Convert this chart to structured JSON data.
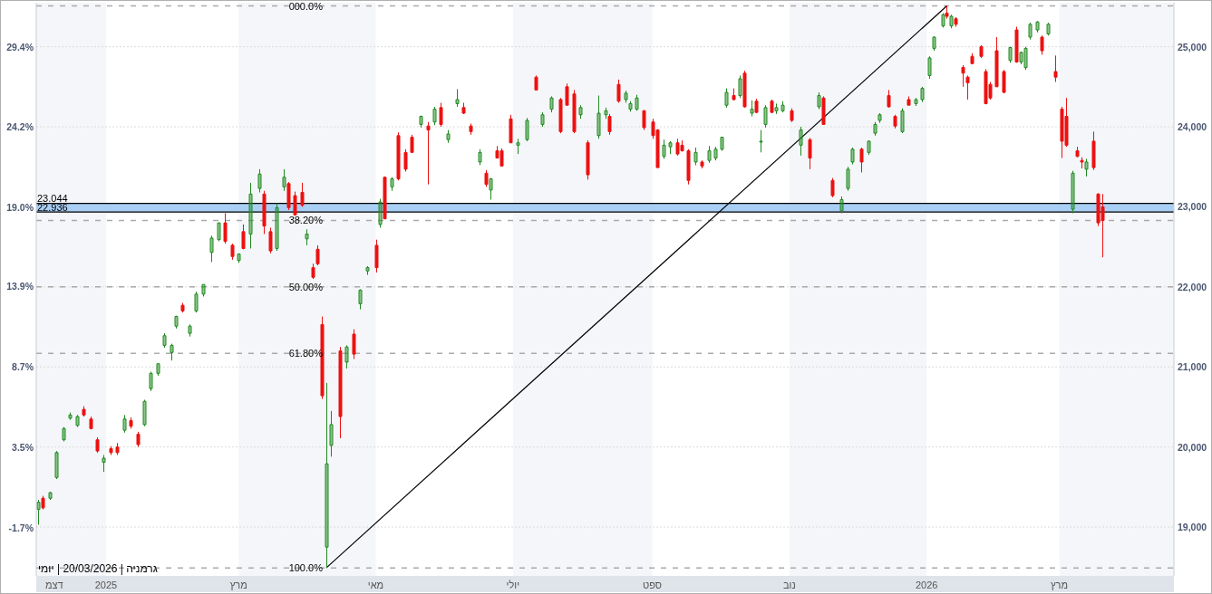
{
  "chart_data": {
    "type": "candlestick",
    "annotations": [
      "גרמניה | 20/03/2026 | יומי",
      {
        "text": "000.0%",
        "x": "2025-04-09",
        "y": 25510
      },
      {
        "text": "38.20%",
        "x": "2025-04-09",
        "y": 22830
      },
      {
        "text": "50.00%",
        "x": "2025-04-09",
        "y": 22000
      },
      {
        "text": "61.80%",
        "x": "2025-04-09",
        "y": 21170
      },
      {
        "text": "100.0%",
        "x": "2025-04-09",
        "y": 18490
      },
      {
        "text": "23.044",
        "x": "2024-12-01",
        "y": 23044
      },
      {
        "text": "22.936",
        "x": "2024-12-01",
        "y": 22936
      }
    ],
    "x": [
      "2024-12-02",
      "2024-12-04",
      "2024-12-07",
      "2024-12-10",
      "2024-12-13",
      "2024-12-16",
      "2024-12-19",
      "2024-12-22",
      "2024-12-25",
      "2024-12-28",
      "2024-12-31",
      "2025-01-03",
      "2025-01-06",
      "2025-01-09",
      "2025-01-12",
      "2025-01-15",
      "2025-01-18",
      "2025-01-21",
      "2025-01-24",
      "2025-01-27",
      "2025-01-30",
      "2025-02-01",
      "2025-02-04",
      "2025-02-07",
      "2025-02-10",
      "2025-02-13",
      "2025-02-17",
      "2025-02-20",
      "2025-02-23",
      "2025-02-26",
      "2025-03-01",
      "2025-03-03",
      "2025-03-06",
      "2025-03-10",
      "2025-03-12",
      "2025-03-15",
      "2025-03-18",
      "2025-03-21",
      "2025-03-23",
      "2025-03-26",
      "2025-03-29",
      "2025-03-31",
      "2025-04-03",
      "2025-04-05",
      "2025-04-07",
      "2025-04-09",
      "2025-04-11",
      "2025-04-15",
      "2025-04-18",
      "2025-04-21",
      "2025-04-24",
      "2025-04-27",
      "2025-05-01",
      "2025-05-03",
      "2025-05-05",
      "2025-05-08",
      "2025-05-11",
      "2025-05-14",
      "2025-05-17",
      "2025-05-21",
      "2025-05-24",
      "2025-05-27",
      "2025-05-30",
      "2025-06-02",
      "2025-06-06",
      "2025-06-09",
      "2025-06-12",
      "2025-06-16",
      "2025-06-19",
      "2025-06-21",
      "2025-06-24",
      "2025-06-26",
      "2025-06-30",
      "2025-07-03",
      "2025-07-07",
      "2025-07-11",
      "2025-07-14",
      "2025-07-18",
      "2025-07-22",
      "2025-07-25",
      "2025-07-28",
      "2025-07-31",
      "2025-08-03",
      "2025-08-08",
      "2025-08-11",
      "2025-08-13",
      "2025-08-17",
      "2025-08-20",
      "2025-08-22",
      "2025-08-25",
      "2025-08-28",
      "2025-09-01",
      "2025-09-03",
      "2025-09-06",
      "2025-09-09",
      "2025-09-12",
      "2025-09-14",
      "2025-09-17",
      "2025-09-20",
      "2025-09-23",
      "2025-09-26",
      "2025-09-29",
      "2025-10-02",
      "2025-10-04",
      "2025-10-07",
      "2025-10-10",
      "2025-10-12",
      "2025-10-15",
      "2025-10-17",
      "2025-10-19",
      "2025-10-21",
      "2025-10-24",
      "2025-10-26",
      "2025-10-29",
      "2025-11-02",
      "2025-11-06",
      "2025-11-10",
      "2025-11-14",
      "2025-11-16",
      "2025-11-20",
      "2025-11-24",
      "2025-11-27",
      "2025-11-29",
      "2025-12-03",
      "2025-12-06",
      "2025-12-09",
      "2025-12-11",
      "2025-12-15",
      "2025-12-18",
      "2025-12-21",
      "2025-12-24",
      "2025-12-27",
      "2025-12-30",
      "2026-01-02",
      "2026-01-04",
      "2026-01-08",
      "2026-01-10",
      "2026-01-12",
      "2026-01-14",
      "2026-01-17",
      "2026-01-19",
      "2026-01-21",
      "2026-01-25",
      "2026-01-27",
      "2026-01-29",
      "2026-02-01",
      "2026-02-04",
      "2026-02-07",
      "2026-02-10",
      "2026-02-12",
      "2026-02-14",
      "2026-02-16",
      "2026-02-19",
      "2026-02-21",
      "2026-02-24",
      "2026-02-27",
      "2026-03-02",
      "2026-03-04",
      "2026-03-07",
      "2026-03-09",
      "2026-03-11",
      "2026-03-13",
      "2026-03-16",
      "2026-03-18",
      "2026-03-20"
    ],
    "ohlc": [
      [
        19220,
        19340,
        19030,
        19310
      ],
      [
        19360,
        19390,
        19220,
        19240
      ],
      [
        19360,
        19440,
        19340,
        19430
      ],
      [
        19620,
        19950,
        19600,
        19930
      ],
      [
        20090,
        20250,
        20070,
        20230
      ],
      [
        20360,
        20430,
        20340,
        20400
      ],
      [
        20270,
        20400,
        20250,
        20380
      ],
      [
        20470,
        20510,
        20380,
        20400
      ],
      [
        20350,
        20380,
        20220,
        20230
      ],
      [
        20090,
        20120,
        19930,
        19950
      ],
      [
        19810,
        19900,
        19690,
        19860
      ],
      [
        19980,
        20010,
        19900,
        19930
      ],
      [
        20000,
        20050,
        19900,
        19930
      ],
      [
        20210,
        20400,
        20180,
        20350
      ],
      [
        20330,
        20370,
        20230,
        20260
      ],
      [
        20160,
        20190,
        20000,
        20030
      ],
      [
        20280,
        20590,
        20260,
        20570
      ],
      [
        20730,
        20940,
        20700,
        20920
      ],
      [
        20920,
        21040,
        20890,
        21040
      ],
      [
        21270,
        21420,
        21240,
        21390
      ],
      [
        21180,
        21290,
        21080,
        21270
      ],
      [
        21510,
        21640,
        21480,
        21630
      ],
      [
        21770,
        21800,
        21680,
        21700
      ],
      [
        21420,
        21530,
        21380,
        21510
      ],
      [
        21700,
        21940,
        21680,
        21910
      ],
      [
        21910,
        22030,
        21880,
        22030
      ],
      [
        22430,
        22640,
        22310,
        22610
      ],
      [
        22590,
        22800,
        22570,
        22800
      ],
      [
        22800,
        22920,
        22540,
        22570
      ],
      [
        22520,
        22540,
        22340,
        22380
      ],
      [
        22330,
        22420,
        22300,
        22410
      ],
      [
        22690,
        22780,
        22470,
        22480
      ],
      [
        22660,
        23300,
        22480,
        23160
      ],
      [
        23230,
        23470,
        23180,
        23410
      ],
      [
        23160,
        23200,
        22660,
        22760
      ],
      [
        22690,
        22740,
        22420,
        22450
      ],
      [
        22480,
        23040,
        22450,
        22990
      ],
      [
        23250,
        23470,
        23200,
        23370
      ],
      [
        23290,
        23310,
        22960,
        22990
      ],
      [
        23140,
        23190,
        22890,
        22900
      ],
      [
        23180,
        23300,
        23000,
        23020
      ],
      [
        22600,
        22720,
        22520,
        22660
      ],
      [
        22240,
        22290,
        22100,
        22120
      ],
      [
        22470,
        22520,
        22270,
        22290
      ],
      [
        21530,
        21630,
        20600,
        20640
      ],
      [
        18750,
        20800,
        18490,
        19790
      ],
      [
        20020,
        20450,
        19880,
        20280
      ],
      [
        21200,
        21250,
        20110,
        20380
      ],
      [
        21060,
        21270,
        20980,
        21250
      ],
      [
        21410,
        21470,
        21100,
        21160
      ],
      [
        21790,
        21970,
        21720,
        21960
      ],
      [
        22200,
        22260,
        22150,
        22240
      ],
      [
        22520,
        22590,
        22180,
        22240
      ],
      [
        22780,
        23100,
        22740,
        23060
      ],
      [
        23370,
        23380,
        22850,
        22850
      ],
      [
        23250,
        23370,
        23200,
        23350
      ],
      [
        23890,
        23930,
        23330,
        23350
      ],
      [
        23680,
        23720,
        23440,
        23470
      ],
      [
        23870,
        23900,
        23680,
        23680
      ],
      [
        24030,
        24140,
        23990,
        24130
      ],
      [
        24010,
        24060,
        23280,
        23960
      ],
      [
        24060,
        24250,
        24020,
        24220
      ],
      [
        24240,
        24300,
        24000,
        24030
      ],
      [
        23840,
        23960,
        23800,
        23910
      ],
      [
        24290,
        24470,
        24250,
        24340
      ],
      [
        24240,
        24300,
        24160,
        24170
      ],
      [
        24010,
        24040,
        23900,
        23940
      ],
      [
        23560,
        23720,
        23520,
        23680
      ],
      [
        23420,
        23460,
        23250,
        23280
      ],
      [
        23210,
        23360,
        23090,
        23350
      ],
      [
        23700,
        23760,
        23610,
        23610
      ],
      [
        23700,
        23730,
        23510,
        23510
      ],
      [
        24100,
        24150,
        23800,
        23800
      ],
      [
        23770,
        23850,
        23660,
        23800
      ],
      [
        23840,
        24110,
        23820,
        24080
      ],
      [
        24620,
        24640,
        24460,
        24460
      ],
      [
        24030,
        24180,
        24000,
        24150
      ],
      [
        24220,
        24380,
        24180,
        24360
      ],
      [
        24340,
        24360,
        23920,
        23940
      ],
      [
        24500,
        24540,
        24270,
        24270
      ],
      [
        24410,
        24460,
        23920,
        23940
      ],
      [
        24150,
        24270,
        24100,
        24240
      ],
      [
        23800,
        23830,
        23340,
        23400
      ],
      [
        23890,
        24390,
        23850,
        24170
      ],
      [
        24150,
        24240,
        24100,
        24200
      ],
      [
        24130,
        24160,
        23900,
        23940
      ],
      [
        24530,
        24590,
        24300,
        24320
      ],
      [
        24340,
        24450,
        24300,
        24420
      ],
      [
        24220,
        24320,
        24190,
        24290
      ],
      [
        24220,
        24400,
        24200,
        24360
      ],
      [
        24200,
        24210,
        23960,
        23990
      ],
      [
        24060,
        24100,
        23850,
        23890
      ],
      [
        23960,
        23970,
        23490,
        23490
      ],
      [
        23630,
        23840,
        23600,
        23770
      ],
      [
        23750,
        23820,
        23660,
        23800
      ],
      [
        23800,
        23850,
        23640,
        23660
      ],
      [
        23770,
        23830,
        23690,
        23700
      ],
      [
        23700,
        23720,
        23280,
        23330
      ],
      [
        23560,
        23740,
        23520,
        23680
      ],
      [
        23560,
        23580,
        23480,
        23510
      ],
      [
        23580,
        23760,
        23550,
        23700
      ],
      [
        23610,
        23750,
        23580,
        23720
      ],
      [
        23720,
        23870,
        23700,
        23870
      ],
      [
        24270,
        24480,
        24240,
        24430
      ],
      [
        24390,
        24480,
        24330,
        24340
      ],
      [
        24390,
        24640,
        24360,
        24600
      ],
      [
        24670,
        24700,
        24240,
        24250
      ],
      [
        24170,
        24330,
        24130,
        24220
      ],
      [
        24320,
        24350,
        24170,
        24180
      ],
      [
        23820,
        23960,
        23680,
        23820
      ],
      [
        24030,
        24270,
        23990,
        24240
      ],
      [
        24320,
        24340,
        24170,
        24180
      ],
      [
        24200,
        24290,
        24160,
        24240
      ],
      [
        24200,
        24320,
        24180,
        24270
      ],
      [
        24200,
        24230,
        24060,
        24080
      ],
      [
        23770,
        24000,
        23640,
        23960
      ],
      [
        23840,
        23860,
        23470,
        23610
      ],
      [
        24250,
        24430,
        24220,
        24390
      ],
      [
        24360,
        24380,
        24030,
        24030
      ],
      [
        23330,
        23360,
        23120,
        23140
      ],
      [
        22950,
        23130,
        22920,
        23090
      ],
      [
        23230,
        23500,
        23200,
        23470
      ],
      [
        23560,
        23740,
        23530,
        23720
      ],
      [
        23720,
        23740,
        23430,
        23560
      ],
      [
        23680,
        23830,
        23650,
        23820
      ],
      [
        23920,
        24060,
        23890,
        24030
      ],
      [
        24080,
        24170,
        24050,
        24150
      ],
      [
        24390,
        24460,
        24240,
        24250
      ],
      [
        24130,
        24150,
        23980,
        24010
      ],
      [
        23940,
        24230,
        23920,
        24200
      ],
      [
        24340,
        24380,
        24270,
        24270
      ],
      [
        24290,
        24360,
        24260,
        24340
      ],
      [
        24340,
        24500,
        24310,
        24480
      ],
      [
        24640,
        24880,
        24600,
        24860
      ],
      [
        24980,
        25130,
        24950,
        25120
      ],
      [
        25260,
        25420,
        25240,
        25400
      ],
      [
        25420,
        25510,
        25350,
        25380
      ],
      [
        25260,
        25400,
        25230,
        25380
      ],
      [
        25350,
        25370,
        25250,
        25280
      ],
      [
        24740,
        24770,
        24500,
        24670
      ],
      [
        24620,
        24640,
        24340,
        24550
      ],
      [
        24880,
        24920,
        24780,
        24790
      ],
      [
        25000,
        25020,
        24860,
        24880
      ],
      [
        24690,
        24720,
        24280,
        24290
      ],
      [
        24530,
        24560,
        24340,
        24360
      ],
      [
        24950,
        25120,
        24500,
        24500
      ],
      [
        24690,
        24710,
        24420,
        24430
      ],
      [
        24830,
        25000,
        24800,
        24990
      ],
      [
        25210,
        25250,
        24800,
        24810
      ],
      [
        24810,
        24940,
        24780,
        24930
      ],
      [
        24740,
        25000,
        24710,
        24980
      ],
      [
        25120,
        25300,
        25090,
        25280
      ],
      [
        25210,
        25320,
        25180,
        25310
      ],
      [
        25120,
        25140,
        24900,
        24950
      ],
      [
        25160,
        25300,
        25140,
        25280
      ],
      [
        24690,
        24890,
        24560,
        24620
      ],
      [
        24220,
        24250,
        23610,
        23820
      ],
      [
        24130,
        24360,
        23750,
        23770
      ],
      [
        22970,
        23450,
        22920,
        23420
      ],
      [
        23700,
        23750,
        23620,
        23630
      ],
      [
        23580,
        23620,
        23480,
        23560
      ],
      [
        23470,
        23600,
        23380,
        23560
      ],
      [
        23820,
        23940,
        23460,
        23490
      ],
      [
        23160,
        23170,
        22760,
        22800
      ],
      [
        23000,
        23160,
        22370,
        22830
      ]
    ],
    "colors": [
      "#1f8a1f",
      "#ee1111",
      "#1f8a1f",
      "#1f8a1f",
      "#1f8a1f",
      "#1f8a1f",
      "#1f8a1f",
      "#ee1111",
      "#ee1111",
      "#ee1111",
      "#1f8a1f",
      "#ee1111",
      "#ee1111",
      "#1f8a1f",
      "#ee1111",
      "#ee1111",
      "#1f8a1f",
      "#1f8a1f",
      "#1f8a1f",
      "#1f8a1f",
      "#1f8a1f",
      "#1f8a1f",
      "#ee1111",
      "#1f8a1f",
      "#1f8a1f",
      "#1f8a1f",
      "#1f8a1f",
      "#1f8a1f",
      "#ee1111",
      "#ee1111",
      "#1f8a1f",
      "#ee1111",
      "#1f8a1f",
      "#1f8a1f",
      "#ee1111",
      "#ee1111",
      "#1f8a1f",
      "#1f8a1f",
      "#ee1111",
      "#ee1111",
      "#ee1111",
      "#1f8a1f",
      "#ee1111",
      "#ee1111",
      "#ee1111",
      "#1f8a1f",
      "#1f8a1f",
      "#ee1111",
      "#1f8a1f",
      "#ee1111",
      "#1f8a1f",
      "#1f8a1f",
      "#ee1111",
      "#1f8a1f",
      "#ee1111",
      "#1f8a1f",
      "#ee1111",
      "#ee1111",
      "#ee1111",
      "#1f8a1f",
      "#ee1111",
      "#1f8a1f",
      "#ee1111",
      "#1f8a1f",
      "#1f8a1f",
      "#ee1111",
      "#ee1111",
      "#1f8a1f",
      "#ee1111",
      "#1f8a1f",
      "#ee1111",
      "#ee1111",
      "#ee1111",
      "#1f8a1f",
      "#1f8a1f",
      "#ee1111",
      "#1f8a1f",
      "#1f8a1f",
      "#ee1111",
      "#ee1111",
      "#ee1111",
      "#1f8a1f",
      "#ee1111",
      "#1f8a1f",
      "#1f8a1f",
      "#ee1111",
      "#ee1111",
      "#1f8a1f",
      "#1f8a1f",
      "#1f8a1f",
      "#ee1111",
      "#ee1111",
      "#ee1111",
      "#1f8a1f",
      "#1f8a1f",
      "#ee1111",
      "#ee1111",
      "#ee1111",
      "#1f8a1f",
      "#ee1111",
      "#1f8a1f",
      "#1f8a1f",
      "#1f8a1f",
      "#1f8a1f",
      "#ee1111",
      "#1f8a1f",
      "#ee1111",
      "#1f8a1f",
      "#ee1111",
      "#1f8a1f",
      "#1f8a1f",
      "#ee1111",
      "#1f8a1f",
      "#1f8a1f",
      "#ee1111",
      "#1f8a1f",
      "#ee1111",
      "#1f8a1f",
      "#ee1111",
      "#ee1111",
      "#1f8a1f",
      "#1f8a1f",
      "#1f8a1f",
      "#ee1111",
      "#1f8a1f",
      "#1f8a1f",
      "#1f8a1f",
      "#ee1111",
      "#ee1111",
      "#1f8a1f",
      "#ee1111",
      "#1f8a1f",
      "#1f8a1f",
      "#1f8a1f",
      "#1f8a1f",
      "#1f8a1f",
      "#ee1111",
      "#1f8a1f",
      "#ee1111",
      "#ee1111",
      "#ee1111",
      "#ee1111",
      "#ee1111",
      "#ee1111",
      "#ee1111",
      "#ee1111",
      "#ee1111",
      "#1f8a1f",
      "#ee1111",
      "#1f8a1f",
      "#1f8a1f",
      "#1f8a1f",
      "#1f8a1f",
      "#ee1111",
      "#1f8a1f",
      "#ee1111",
      "#ee1111",
      "#ee1111",
      "#1f8a1f",
      "#ee1111",
      "#ee1111",
      "#1f8a1f",
      "#ee1111",
      "#ee1111",
      "#ee1111"
    ],
    "series": [
      {
        "type": "line",
        "color": "#000000",
        "x": [
          "2025-04-09",
          "2026-01-10"
        ],
        "values": [
          18490,
          25510
        ]
      }
    ],
    "xlim": [
      "2024-12-01",
      "2026-04-21"
    ],
    "xticks": [
      {
        "value": "2024-12-09",
        "label": "דצמ"
      },
      {
        "value": "2025-01-01",
        "label": "2025"
      },
      {
        "value": "2025-03-01",
        "label": "מרץ"
      },
      {
        "value": "2025-05-01",
        "label": "מאי"
      },
      {
        "value": "2025-07-01",
        "label": "יולי"
      },
      {
        "value": "2025-09-01",
        "label": "ספט"
      },
      {
        "value": "2025-11-01",
        "label": "נוב"
      },
      {
        "value": "2026-01-01",
        "label": "2026"
      },
      {
        "value": "2026-03-01",
        "label": "מרץ"
      }
    ],
    "ylim": [
      18390,
      25550
    ],
    "yticks": [
      {
        "value": 19000,
        "label": "19,000"
      },
      {
        "value": 20000,
        "label": "20,000"
      },
      {
        "value": 21000,
        "label": "21,000"
      },
      {
        "value": 22000,
        "label": "22,000"
      },
      {
        "value": 23000,
        "label": "23,000"
      },
      {
        "value": 24000,
        "label": "24,000"
      },
      {
        "value": 25000,
        "label": "25,000"
      }
    ],
    "y2lim": [
      -4.81,
      32.25
    ],
    "y2ticks": [
      {
        "value": -1.7,
        "label": "-1.7%"
      },
      {
        "value": 3.5,
        "label": "3.5%"
      },
      {
        "value": 8.7,
        "label": "8.7%"
      },
      {
        "value": 13.9,
        "label": "13.9%"
      },
      {
        "value": 19.0,
        "label": "19.0%"
      },
      {
        "value": 24.2,
        "label": "24.2%"
      },
      {
        "value": 29.4,
        "label": "29.4%"
      }
    ],
    "grid": "y",
    "ref_lines": [
      {
        "axis": "y",
        "value": 25510,
        "color": "#aaaaaa",
        "line_style": "dashed"
      },
      {
        "axis": "y",
        "value": 22830,
        "color": "#aaaaaa",
        "line_style": "dashed"
      },
      {
        "axis": "y",
        "value": 22000,
        "color": "#aaaaaa",
        "line_style": "dashed"
      },
      {
        "axis": "y",
        "value": 21170,
        "color": "#aaaaaa",
        "line_style": "dashed"
      },
      {
        "axis": "y",
        "value": 18490,
        "color": "#aaaaaa",
        "line_style": "dashed"
      },
      {
        "axis": "y",
        "value": 23044,
        "color": "#000000",
        "line_style": "solid"
      },
      {
        "axis": "y",
        "value": 22936,
        "color": "#000000",
        "line_style": "solid"
      }
    ],
    "bands": [
      {
        "axis": "x",
        "from": "2024-12-01",
        "to": "2025-01-01",
        "color": "#f4f6f9"
      },
      {
        "axis": "x",
        "from": "2025-03-01",
        "to": "2025-05-01",
        "color": "#f4f6f9"
      },
      {
        "axis": "x",
        "from": "2025-07-01",
        "to": "2025-09-01",
        "color": "#f4f6f9"
      },
      {
        "axis": "x",
        "from": "2025-11-01",
        "to": "2026-01-01",
        "color": "#f4f6f9"
      },
      {
        "axis": "x",
        "from": "2026-03-01",
        "to": "2026-04-21",
        "color": "#f4f6f9"
      },
      {
        "axis": "y",
        "from": 22936,
        "to": 23044,
        "color": "#a9cff5"
      }
    ]
  }
}
